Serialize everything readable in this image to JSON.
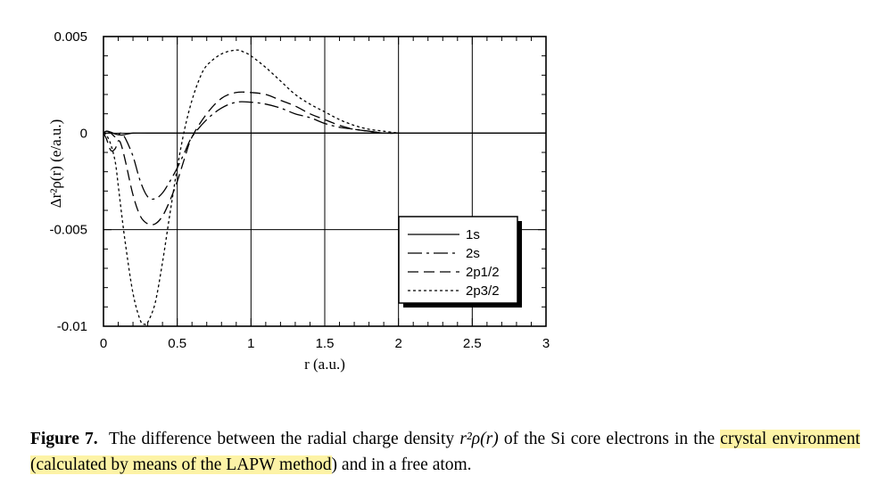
{
  "chart_data": {
    "type": "line",
    "xlabel": "r (a.u.)",
    "ylabel": "Δr²ρ(r) (e/a.u.)",
    "xlim": [
      0,
      3
    ],
    "ylim": [
      -0.01,
      0.005
    ],
    "xticks": [
      0,
      0.5,
      1,
      1.5,
      2,
      2.5,
      3
    ],
    "xtick_labels": [
      "0",
      "0.5",
      "1",
      "1.5",
      "2",
      "2.5",
      "3"
    ],
    "yticks": [
      0.005,
      0,
      -0.005,
      -0.01
    ],
    "ytick_labels": [
      "0.005",
      "0",
      "-0.005",
      "-0.01"
    ],
    "grid": true,
    "legend_position": "lower-right",
    "series": [
      {
        "name": "1s",
        "dash": "solid",
        "x": [
          0,
          0.02,
          0.05,
          0.08,
          0.12,
          0.16,
          0.2,
          0.3,
          0.5,
          1,
          1.5,
          2,
          3
        ],
        "y": [
          0,
          0.0001,
          5e-05,
          -5e-05,
          -0.0001,
          -5e-05,
          0,
          0,
          0,
          0,
          0,
          0,
          0
        ]
      },
      {
        "name": "2s",
        "dash": "long-short",
        "x": [
          0,
          0.02,
          0.05,
          0.08,
          0.1,
          0.12,
          0.15,
          0.2,
          0.25,
          0.3,
          0.35,
          0.4,
          0.45,
          0.5,
          0.55,
          0.6,
          0.7,
          0.8,
          0.9,
          1.0,
          1.1,
          1.2,
          1.3,
          1.4,
          1.5,
          1.6,
          1.7,
          1.8,
          1.9,
          2.0
        ],
        "y": [
          0,
          0.0001,
          0,
          -0.0002,
          -0.0001,
          0,
          -0.0003,
          -0.0012,
          -0.0025,
          -0.0033,
          -0.0034,
          -0.0031,
          -0.0025,
          -0.0018,
          -0.001,
          -0.0002,
          0.0007,
          0.0013,
          0.0016,
          0.0016,
          0.0015,
          0.0013,
          0.001,
          0.0008,
          0.0005,
          0.0003,
          0.0002,
          0.0001,
          0,
          0
        ]
      },
      {
        "name": "2p1/2",
        "dash": "long-dash",
        "x": [
          0,
          0.02,
          0.05,
          0.08,
          0.1,
          0.12,
          0.15,
          0.2,
          0.25,
          0.3,
          0.35,
          0.4,
          0.45,
          0.5,
          0.55,
          0.6,
          0.7,
          0.8,
          0.9,
          1.0,
          1.1,
          1.2,
          1.3,
          1.4,
          1.5,
          1.6,
          1.7,
          1.8,
          1.9,
          2.0
        ],
        "y": [
          0,
          -0.0003,
          -0.0009,
          -0.0008,
          -0.0004,
          -0.0006,
          -0.0015,
          -0.0032,
          -0.0043,
          -0.0047,
          -0.0047,
          -0.0043,
          -0.0035,
          -0.0025,
          -0.0013,
          -0.0002,
          0.001,
          0.0018,
          0.0021,
          0.0021,
          0.002,
          0.0017,
          0.0014,
          0.001,
          0.0007,
          0.0004,
          0.0002,
          0.0001,
          0,
          0
        ]
      },
      {
        "name": "2p3/2",
        "dash": "short-dash",
        "x": [
          0,
          0.02,
          0.05,
          0.08,
          0.1,
          0.12,
          0.15,
          0.2,
          0.25,
          0.28,
          0.3,
          0.35,
          0.4,
          0.45,
          0.5,
          0.55,
          0.6,
          0.65,
          0.7,
          0.8,
          0.9,
          0.95,
          1.0,
          1.1,
          1.2,
          1.3,
          1.4,
          1.5,
          1.6,
          1.7,
          1.8,
          1.9,
          2.0
        ],
        "y": [
          0,
          -0.0001,
          -0.0006,
          -0.0015,
          -0.0027,
          -0.004,
          -0.0058,
          -0.0083,
          -0.0097,
          -0.0099,
          -0.0098,
          -0.0088,
          -0.0067,
          -0.0042,
          -0.0018,
          0.0002,
          0.0017,
          0.0028,
          0.0035,
          0.0041,
          0.0043,
          0.0042,
          0.004,
          0.0034,
          0.0027,
          0.002,
          0.0015,
          0.0011,
          0.0007,
          0.0004,
          0.0002,
          0.0001,
          0
        ]
      }
    ]
  },
  "caption": {
    "label": "Figure 7.",
    "text_part1": "The difference between the radial charge density",
    "math": "r²ρ(r)",
    "text_part2": "of the Si core electrons in the",
    "highlighted": "crystal environment (calculated by means of the LAPW method",
    "text_part3": ") and in a free atom."
  }
}
